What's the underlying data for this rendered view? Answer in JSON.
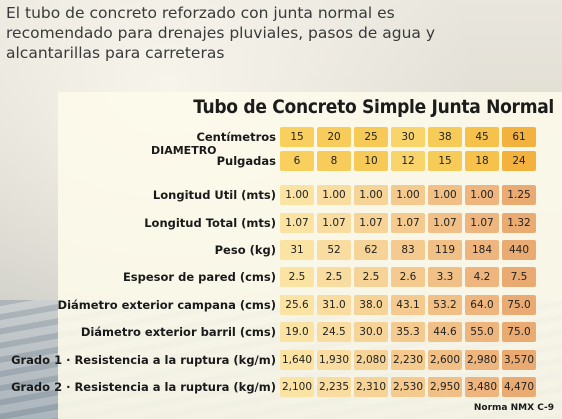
{
  "intro": "El tubo de concreto reforzado con junta normal es recomendado para drenajes pluviales, pasos de agua y alcantarillas para carreteras",
  "table": {
    "title": "Tubo de Concreto Simple Junta Normal",
    "group_label": "DIAMETRO",
    "rows": [
      {
        "label": "Centímetros",
        "values": [
          "15",
          "20",
          "25",
          "30",
          "38",
          "45",
          "61"
        ]
      },
      {
        "label": "Pulgadas",
        "values": [
          "6",
          "8",
          "10",
          "12",
          "15",
          "18",
          "24"
        ]
      },
      {
        "label": "Longitud Util (mts)",
        "values": [
          "1.00",
          "1.00",
          "1.00",
          "1.00",
          "1.00",
          "1.00",
          "1.25"
        ]
      },
      {
        "label": "Longitud Total (mts)",
        "values": [
          "1.07",
          "1.07",
          "1.07",
          "1.07",
          "1.07",
          "1.07",
          "1.32"
        ]
      },
      {
        "label": "Peso (kg)",
        "values": [
          "31",
          "52",
          "62",
          "83",
          "119",
          "184",
          "440"
        ]
      },
      {
        "label": "Espesor de pared (cms)",
        "values": [
          "2.5",
          "2.5",
          "2.5",
          "2.6",
          "3.3",
          "4.2",
          "7.5"
        ]
      },
      {
        "label": "Diámetro exterior campana (cms)",
        "values": [
          "25.6",
          "31.0",
          "38.0",
          "43.1",
          "53.2",
          "64.0",
          "75.0"
        ]
      },
      {
        "label": "Diámetro exterior barril (cms)",
        "values": [
          "19.0",
          "24.5",
          "30.0",
          "35.3",
          "44.6",
          "55.0",
          "75.0"
        ]
      },
      {
        "label": "Grado 1 · Resistencia a la ruptura (kg/m)",
        "values": [
          "1,640",
          "1,930",
          "2,080",
          "2,230",
          "2,600",
          "2,980",
          "3,570"
        ]
      },
      {
        "label": "Grado 2 · Resistencia a la ruptura (kg/m)",
        "values": [
          "2,100",
          "2,235",
          "2,310",
          "2,530",
          "2,950",
          "3,480",
          "4,470"
        ]
      }
    ],
    "footnote": "Norma NMX C-9"
  },
  "colors": {
    "cell_scale": [
      "#fbe3a4",
      "#f9dca0",
      "#f6d397",
      "#f4ca8e",
      "#f1c086",
      "#eeb67e",
      "#eaab73"
    ],
    "header_scale": [
      "#f9cf5e",
      "#f8cc5b",
      "#f7c957",
      "#f8d46a",
      "#f7cb58",
      "#f6c24c",
      "#f3b13e"
    ]
  }
}
